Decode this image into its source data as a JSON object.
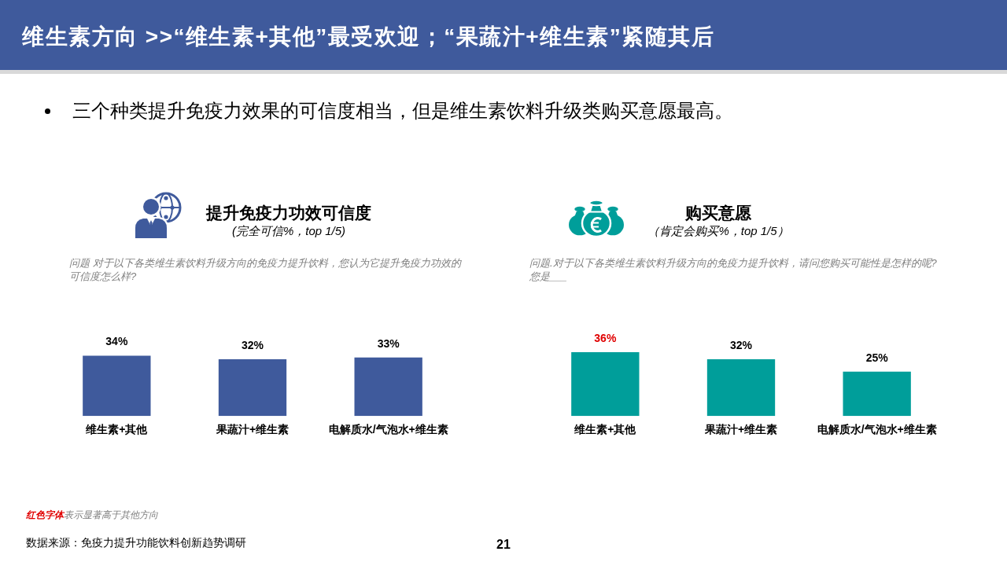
{
  "chart_data": [
    {
      "type": "other",
      "title": "维生素方向 >>“维生素+其他”最受欢迎；“果蔬汁+维生素”紧随其后",
      "subtitle": "三个种类提升免疫力效果的可信度相当，但是维生素饮料升级类购买意愿最高。",
      "annotations": [
        "红色字体",
        "表示显著高于其他方向",
        "数据来源：免疫力提升功能饮料创新趋势调研",
        "21"
      ]
    },
    {
      "type": "bar",
      "title": "提升免疫力功效可信度",
      "subtitle": "(完全可信%，top 1/5)",
      "categories": [
        "维生素+其他",
        "果蔬汁+维生素",
        "电解质水/气泡水+维生素"
      ],
      "values": [
        34,
        32,
        33
      ],
      "color": "#3f5a9c",
      "value_labels": [
        "34%",
        "32%",
        "33%"
      ],
      "tick_labels": "x",
      "annotations": [
        "问题 对于以下各类维生素饮料升级方向的免疫力提升饮料，您认为它提升免疫力功效的可信度怎么样?"
      ]
    },
    {
      "type": "bar",
      "title": "购买意愿",
      "subtitle": "（肯定会购买%，top 1/5）",
      "categories": [
        "维生素+其他",
        "果蔬汁+维生素",
        "电解质水/气泡水+维生素"
      ],
      "values": [
        36,
        32,
        25
      ],
      "color": "#009e9a",
      "value_labels": [
        null,
        "32%",
        "25%"
      ],
      "tick_labels": "x",
      "annotations": [
        "问题.对于以下各类维生素饮料升级方向的免疫力提升饮料，请问您购买可能性是怎样的呢?您是___",
        {
          "text": "36%",
          "x": "维生素+其他",
          "y": 36
        }
      ]
    }
  ]
}
